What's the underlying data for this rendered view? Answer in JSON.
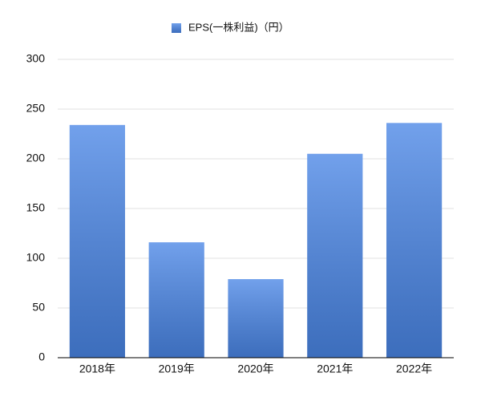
{
  "chart_data": {
    "type": "bar",
    "legend": "EPS(一株利益)（円）",
    "legend_position": "top",
    "categories": [
      "2018年",
      "2019年",
      "2020年",
      "2021年",
      "2022年"
    ],
    "values": [
      234,
      116,
      79,
      205,
      236
    ],
    "color": "#4a86e6",
    "ylim": [
      0,
      300
    ],
    "yticks": [
      0,
      50,
      100,
      150,
      200,
      250,
      300
    ],
    "grid": true
  }
}
